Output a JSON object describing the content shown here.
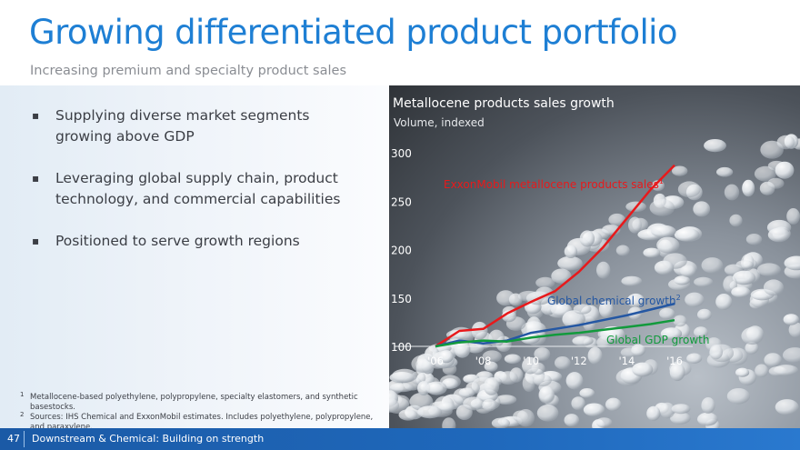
{
  "slide": {
    "title": "Growing differentiated product portfolio",
    "subtitle": "Increasing premium and specialty product sales"
  },
  "bullets": [
    {
      "text": "Supplying diverse market segments growing above GDP"
    },
    {
      "text": "Leveraging global supply chain, product technology, and commercial capabilities"
    },
    {
      "text": "Positioned to serve growth regions"
    }
  ],
  "bullet_marker": "▪",
  "footnotes": [
    {
      "num": "1",
      "text": "Metallocene-based polyethylene, polypropylene, specialty elastomers, and synthetic basestocks."
    },
    {
      "num": "2",
      "text": "Sources:  IHS Chemical and ExxonMobil estimates.  Includes polyethylene, polypropylene, and paraxylene."
    }
  ],
  "footer": {
    "page": "47",
    "text": "Downstream & Chemical:  Building on strength"
  },
  "chart_data": {
    "type": "line",
    "title": "Metallocene products sales growth",
    "subtitle": "Volume, indexed",
    "xlabel": "",
    "ylabel": "",
    "x": [
      2006,
      2007,
      2008,
      2009,
      2010,
      2011,
      2012,
      2013,
      2014,
      2015,
      2016
    ],
    "tick_labels": [
      "'06",
      "'08",
      "'10",
      "'12",
      "'14",
      "'16"
    ],
    "tick_years": [
      2006,
      2008,
      2010,
      2012,
      2014,
      2016
    ],
    "yticks": [
      100,
      150,
      200,
      250,
      300
    ],
    "ylim": [
      100,
      300
    ],
    "xlim": [
      2006,
      2016
    ],
    "series": [
      {
        "name": "ExxonMobil metallocene products sales",
        "footnote": "1",
        "color": "#e8191b",
        "values": [
          100,
          116,
          118,
          134,
          146,
          157,
          177,
          202,
          232,
          262,
          287
        ]
      },
      {
        "name": "Global chemical growth",
        "footnote": "2",
        "color": "#2457a3",
        "values": [
          100,
          106,
          103,
          106,
          114,
          118,
          122,
          127,
          132,
          138,
          144
        ]
      },
      {
        "name": "Global GDP growth",
        "footnote": "",
        "color": "#129a3c",
        "values": [
          100,
          104,
          106,
          105,
          109,
          112,
          114,
          117,
          120,
          123,
          127
        ]
      }
    ],
    "grid": false,
    "legend": "inline labels"
  }
}
